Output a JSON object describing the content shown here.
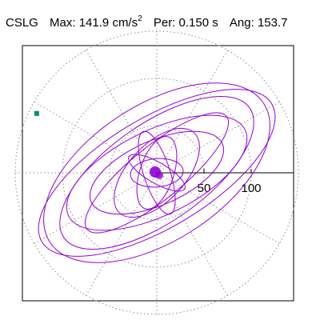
{
  "header": {
    "station": "CSLG",
    "max_label": "Max:",
    "max_value": "141.9",
    "max_unit_base": "cm/s",
    "max_unit_exp": "2",
    "period_label": "Per:",
    "period_value": "0.150 s",
    "angle_label": "Ang:",
    "angle_value": "153.7"
  },
  "chart_data": {
    "type": "line",
    "plot_kind": "polar orbit",
    "title": "",
    "xlabel": "",
    "ylabel": "",
    "radial_ticks": [
      50,
      100
    ],
    "radial_tick_labels": [
      "50",
      "100"
    ],
    "rings": [
      50,
      100,
      150
    ],
    "spoke_angles_deg": [
      0,
      30,
      60,
      90,
      120,
      150,
      180,
      210,
      240,
      270,
      300,
      330
    ],
    "grid": true,
    "grid_style": "dotted",
    "peak_angle_deg": 153.7,
    "peak_value": 141.9,
    "series": [
      {
        "color": "#9400d3",
        "ellipses": [
          {
            "a": 142,
            "b": 58,
            "tilt": -31
          },
          {
            "a": 135,
            "b": 72,
            "tilt": -33
          },
          {
            "a": 120,
            "b": 52,
            "tilt": -35
          },
          {
            "a": 104,
            "b": 45,
            "tilt": -26
          },
          {
            "a": 95,
            "b": 28,
            "tilt": -39
          },
          {
            "a": 76,
            "b": 34,
            "tilt": -24
          },
          {
            "a": 58,
            "b": 30,
            "tilt": -47
          }
        ],
        "lobes": [
          {
            "a": 46,
            "b": 14,
            "tilt": 72
          },
          {
            "a": 40,
            "b": 18,
            "tilt": -72
          },
          {
            "a": 34,
            "b": 11,
            "tilt": 30
          },
          {
            "a": 28,
            "b": 15,
            "tilt": -5
          }
        ]
      }
    ],
    "peak_marker_color": "#008b74"
  }
}
